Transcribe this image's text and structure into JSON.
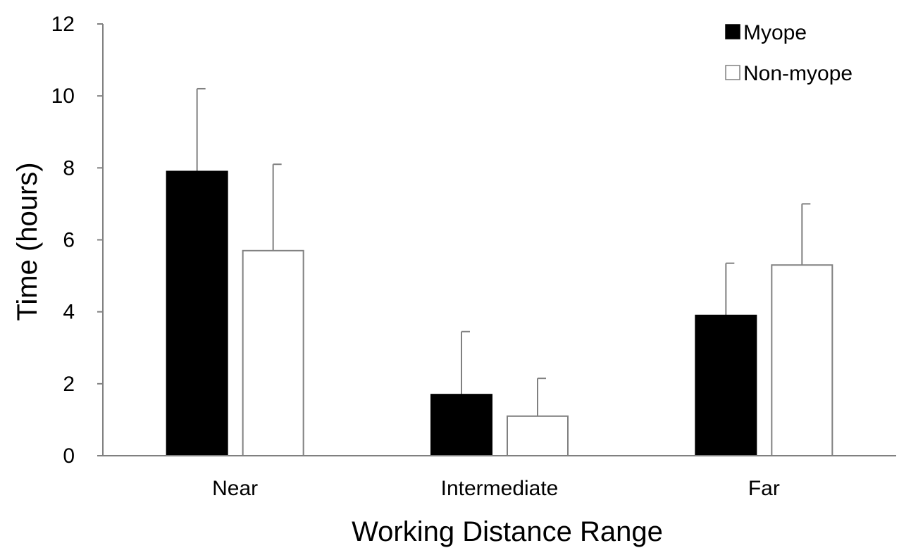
{
  "chart_data": {
    "type": "bar",
    "title": "",
    "xlabel": "Working Distance Range",
    "ylabel": "Time (hours)",
    "ylim": [
      0,
      12
    ],
    "yticks": [
      0,
      2,
      4,
      6,
      8,
      10,
      12
    ],
    "categories": [
      "Near",
      "Intermediate",
      "Far"
    ],
    "series": [
      {
        "name": "Myope",
        "values": [
          7.9,
          1.7,
          3.9
        ],
        "error": [
          2.3,
          1.75,
          1.45
        ],
        "fill": "#000000",
        "stroke": "#000000"
      },
      {
        "name": "Non-myope",
        "values": [
          5.7,
          1.1,
          5.3
        ],
        "error": [
          2.4,
          1.05,
          1.7
        ],
        "fill": "#ffffff",
        "stroke": "#808080"
      }
    ],
    "legend_position": "top-right",
    "grid": false,
    "colors": {
      "axis": "#808080",
      "errorbar": "#808080"
    }
  }
}
